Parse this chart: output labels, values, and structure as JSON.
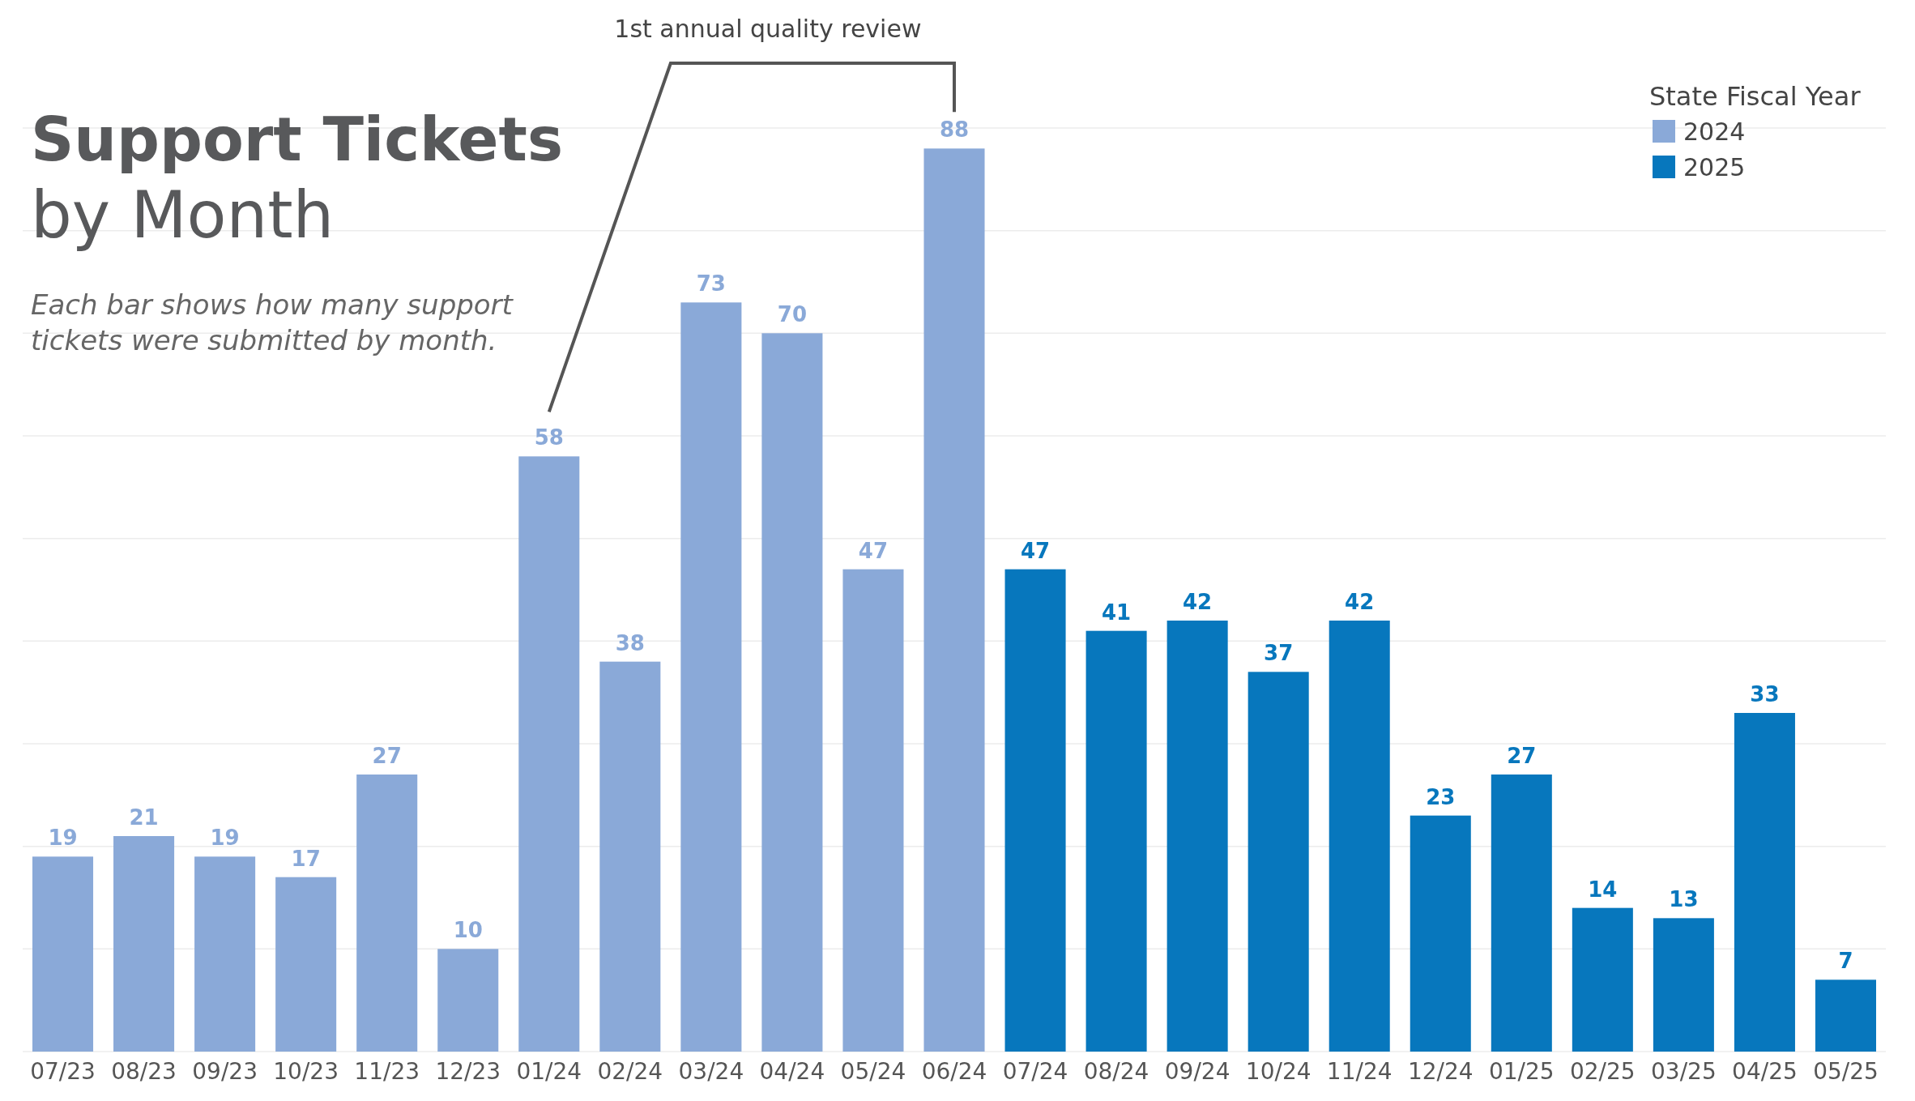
{
  "chart_data": {
    "type": "bar",
    "title": "Support Tickets",
    "subtitle": "by Month",
    "annotations": [
      "Each bar shows how many support tickets were submitted by month.",
      "1st annual quality review"
    ],
    "categories": [
      "07/23",
      "08/23",
      "09/23",
      "10/23",
      "11/23",
      "12/23",
      "01/24",
      "02/24",
      "03/24",
      "04/24",
      "05/24",
      "06/24",
      "07/24",
      "08/24",
      "09/24",
      "10/24",
      "11/24",
      "12/24",
      "01/25",
      "02/25",
      "03/25",
      "04/25",
      "05/25"
    ],
    "stacked": true,
    "legend_title": "State Fiscal Year",
    "legend": "top right",
    "data_labels": true,
    "grid": "y",
    "tick_labels": "x",
    "ylim": [
      0,
      90
    ],
    "yticks": [
      {
        "value": 0,
        "label": null
      },
      {
        "value": 10,
        "label": null
      },
      {
        "value": 20,
        "label": null
      },
      {
        "value": 30,
        "label": null
      },
      {
        "value": 40,
        "label": null
      },
      {
        "value": 50,
        "label": null
      },
      {
        "value": 60,
        "label": null
      },
      {
        "value": 70,
        "label": null
      },
      {
        "value": 80,
        "label": null
      },
      {
        "value": 90,
        "label": null
      }
    ],
    "series": [
      {
        "name": "2024",
        "color": "#8aa9d8",
        "values": [
          19,
          21,
          19,
          17,
          27,
          10,
          58,
          38,
          73,
          70,
          47,
          88,
          null,
          null,
          null,
          null,
          null,
          null,
          null,
          null,
          null,
          null,
          null
        ]
      },
      {
        "name": "2025",
        "color": "#0777bd",
        "values": [
          null,
          null,
          null,
          null,
          null,
          null,
          null,
          null,
          null,
          null,
          null,
          null,
          47,
          41,
          42,
          37,
          42,
          23,
          27,
          14,
          13,
          33,
          7
        ]
      }
    ]
  }
}
